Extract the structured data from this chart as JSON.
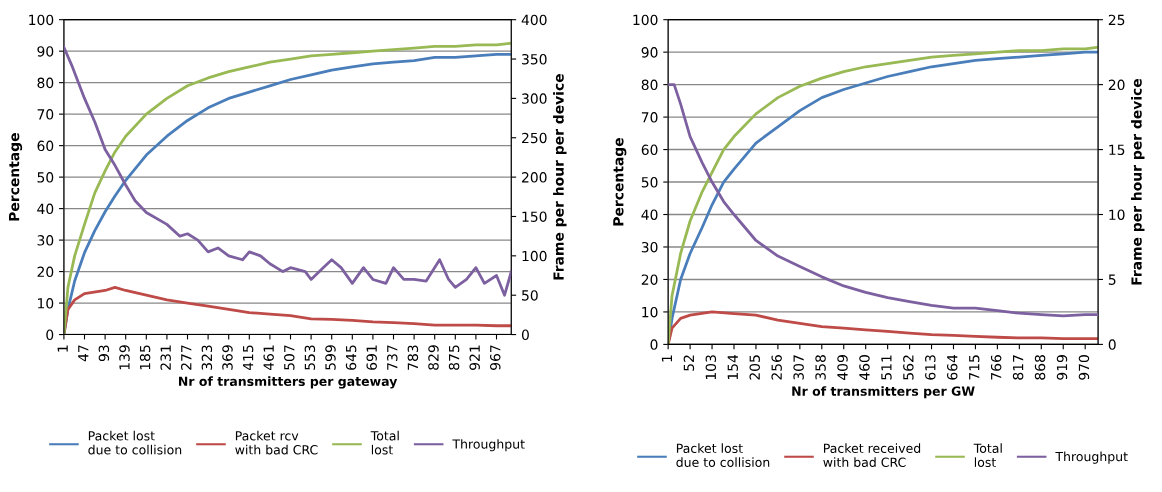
{
  "chart_data": [
    {
      "type": "line",
      "xlabel": "Nr of transmitters per gateway",
      "ylabel": "Percentage",
      "y2label": "Frame per hour per device",
      "grid": "y",
      "legend": "bottom",
      "marker": "none",
      "line_style": "solid",
      "xlim": [
        1,
        1000
      ],
      "xticks": [
        1,
        47,
        93,
        139,
        185,
        231,
        277,
        323,
        369,
        415,
        461,
        507,
        553,
        599,
        645,
        691,
        737,
        783,
        829,
        875,
        921,
        967
      ],
      "ylim": [
        0,
        100
      ],
      "yticks": [
        0,
        10,
        20,
        30,
        40,
        50,
        60,
        70,
        80,
        90,
        100
      ],
      "y2lim": [
        0,
        400
      ],
      "y2ticks": [
        0,
        50,
        100,
        150,
        200,
        250,
        300,
        350,
        400
      ],
      "series": [
        {
          "name": "Packet lost\ndue to collision",
          "color": "#4a7ebb",
          "x": [
            1,
            10,
            25,
            47,
            70,
            93,
            115,
            139,
            185,
            231,
            277,
            323,
            369,
            415,
            461,
            507,
            553,
            599,
            645,
            691,
            737,
            783,
            829,
            875,
            921,
            967,
            1000
          ],
          "values": [
            0,
            8,
            17,
            26,
            33,
            39,
            44,
            49,
            57,
            63,
            68,
            72,
            75,
            77,
            79,
            81,
            82.5,
            84,
            85,
            86,
            86.5,
            87,
            88,
            88,
            88.5,
            89,
            89
          ]
        },
        {
          "name": "Packet rcv\nwith bad CRC",
          "color": "#be4b48",
          "x": [
            1,
            10,
            25,
            47,
            93,
            115,
            139,
            185,
            231,
            277,
            323,
            369,
            415,
            461,
            507,
            553,
            599,
            645,
            691,
            737,
            783,
            829,
            875,
            921,
            967,
            1000
          ],
          "values": [
            0,
            8,
            11,
            13,
            14,
            15,
            14,
            12.5,
            11,
            10,
            9,
            8,
            7,
            6.5,
            6,
            5,
            4.8,
            4.5,
            4,
            3.8,
            3.5,
            3,
            3,
            3,
            2.8,
            2.8
          ]
        },
        {
          "name": "Total\nlost",
          "color": "#98b954",
          "x": [
            1,
            10,
            25,
            47,
            70,
            93,
            115,
            139,
            185,
            231,
            277,
            323,
            369,
            415,
            461,
            507,
            553,
            599,
            645,
            691,
            737,
            783,
            829,
            875,
            921,
            967,
            1000
          ],
          "values": [
            0,
            15,
            25,
            35,
            45,
            52,
            58,
            63,
            70,
            75,
            79,
            81.5,
            83.5,
            85,
            86.5,
            87.5,
            88.5,
            89,
            89.5,
            90,
            90.5,
            91,
            91.5,
            91.5,
            92,
            92,
            92.5
          ]
        },
        {
          "name": "Throughput",
          "color": "#7d60a0",
          "axis": "y2",
          "x": [
            1,
            20,
            47,
            70,
            93,
            115,
            139,
            160,
            185,
            231,
            260,
            277,
            300,
            323,
            345,
            369,
            400,
            415,
            440,
            461,
            490,
            507,
            540,
            553,
            580,
            599,
            620,
            645,
            670,
            691,
            720,
            737,
            760,
            783,
            810,
            840,
            860,
            875,
            900,
            921,
            940,
            967,
            985,
            1000
          ],
          "values": [
            365,
            340,
            300,
            270,
            235,
            215,
            190,
            170,
            155,
            140,
            125,
            128,
            120,
            105,
            110,
            100,
            95,
            105,
            100,
            90,
            80,
            85,
            80,
            70,
            85,
            95,
            85,
            65,
            85,
            70,
            65,
            85,
            70,
            70,
            68,
            95,
            70,
            60,
            70,
            85,
            65,
            75,
            50,
            80
          ]
        }
      ]
    },
    {
      "type": "line",
      "xlabel": "Nr of transmitters per GW",
      "ylabel": "Percentage",
      "y2label": "Frame per hour per device",
      "grid": "y",
      "legend": "bottom",
      "marker": "none",
      "line_style": "solid",
      "xlim": [
        1,
        1000
      ],
      "xticks": [
        1,
        52,
        103,
        154,
        205,
        256,
        307,
        358,
        409,
        460,
        511,
        562,
        613,
        664,
        715,
        766,
        817,
        868,
        919,
        970
      ],
      "ylim": [
        0,
        100
      ],
      "yticks": [
        0,
        10,
        20,
        30,
        40,
        50,
        60,
        70,
        80,
        90,
        100
      ],
      "y2lim": [
        0,
        25
      ],
      "y2ticks": [
        0,
        5,
        10,
        15,
        20,
        25
      ],
      "series": [
        {
          "name": "Packet lost\ndue to collision",
          "color": "#4a7ebb",
          "x": [
            1,
            10,
            30,
            52,
            80,
            103,
            130,
            154,
            205,
            256,
            307,
            358,
            409,
            460,
            511,
            562,
            613,
            664,
            715,
            766,
            817,
            868,
            919,
            970,
            1000
          ],
          "values": [
            0,
            8,
            20,
            28,
            36,
            43,
            50,
            54,
            62,
            67,
            72,
            76,
            78.5,
            80.5,
            82.5,
            84,
            85.5,
            86.5,
            87.5,
            88,
            88.5,
            89,
            89.5,
            90,
            90
          ]
        },
        {
          "name": "Packet received\nwith bad CRC",
          "color": "#be4b48",
          "x": [
            1,
            10,
            30,
            52,
            103,
            154,
            205,
            256,
            307,
            358,
            409,
            460,
            511,
            562,
            613,
            664,
            715,
            766,
            817,
            868,
            919,
            970,
            1000
          ],
          "values": [
            0,
            5,
            8,
            9,
            10,
            9.5,
            9,
            7.5,
            6.5,
            5.5,
            5,
            4.5,
            4,
            3.5,
            3,
            2.8,
            2.5,
            2.2,
            2,
            2,
            1.8,
            1.8,
            1.8
          ]
        },
        {
          "name": "Total\nlost",
          "color": "#98b954",
          "x": [
            1,
            10,
            30,
            52,
            80,
            103,
            130,
            154,
            205,
            256,
            307,
            358,
            409,
            460,
            511,
            562,
            613,
            664,
            715,
            766,
            817,
            868,
            919,
            970,
            1000
          ],
          "values": [
            0,
            15,
            28,
            38,
            47,
            53,
            60,
            64,
            71,
            76,
            79.5,
            82,
            84,
            85.5,
            86.5,
            87.5,
            88.5,
            89,
            89.5,
            90,
            90.5,
            90.5,
            91,
            91,
            91.5
          ]
        },
        {
          "name": "Throughput",
          "color": "#7d60a0",
          "axis": "y2",
          "x": [
            1,
            15,
            30,
            52,
            80,
            103,
            130,
            154,
            205,
            256,
            307,
            358,
            409,
            460,
            511,
            562,
            613,
            664,
            715,
            766,
            817,
            868,
            919,
            970,
            1000
          ],
          "values": [
            20,
            20,
            18.5,
            16,
            14,
            12.5,
            11,
            10,
            8,
            6.8,
            6,
            5.2,
            4.5,
            4,
            3.6,
            3.3,
            3,
            2.8,
            2.8,
            2.6,
            2.4,
            2.3,
            2.2,
            2.3,
            2.3
          ]
        }
      ]
    }
  ]
}
